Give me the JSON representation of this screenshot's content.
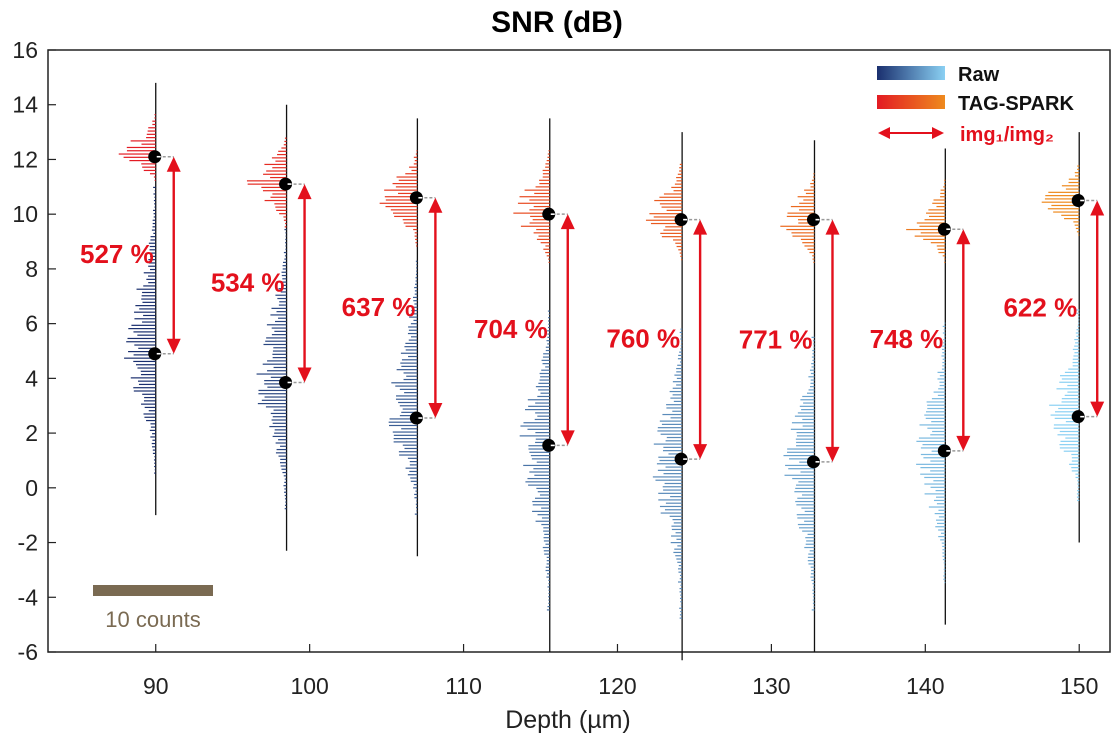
{
  "chart_data": {
    "type": "violin-histogram",
    "title": "SNR (dB)",
    "xlabel": "Depth (µm)",
    "ylabel": "",
    "xlim": [
      83,
      152
    ],
    "ylim": [
      -6,
      16
    ],
    "xticks": [
      90,
      100,
      110,
      120,
      130,
      140,
      150
    ],
    "yticks": [
      -6,
      -4,
      -2,
      0,
      2,
      4,
      6,
      8,
      10,
      12,
      14,
      16
    ],
    "depths": [
      90,
      98.5,
      107,
      115.6,
      124.2,
      132.8,
      141.3,
      150
    ],
    "raw_median": [
      4.9,
      3.85,
      2.55,
      1.55,
      1.05,
      0.95,
      1.35,
      2.6
    ],
    "tag_spark_median": [
      12.1,
      11.1,
      10.6,
      10.0,
      9.8,
      9.8,
      9.45,
      10.5
    ],
    "raw_range": [
      [
        0.5,
        11.0
      ],
      [
        -0.8,
        9.5
      ],
      [
        -1.0,
        8.3
      ],
      [
        -4.5,
        6.5
      ],
      [
        -4.8,
        5.8
      ],
      [
        -4.5,
        5.5
      ],
      [
        -3.5,
        6.0
      ],
      [
        -0.5,
        6.5
      ]
    ],
    "tag_spark_range": [
      [
        11.2,
        13.6
      ],
      [
        9.5,
        12.8
      ],
      [
        8.8,
        12.3
      ],
      [
        8.2,
        12.3
      ],
      [
        8.3,
        11.8
      ],
      [
        8.2,
        11.5
      ],
      [
        8.2,
        11.2
      ],
      [
        9.2,
        11.8
      ]
    ],
    "ratio_labels": [
      "527 %",
      "534 %",
      "637 %",
      "704 %",
      "760 %",
      "771 %",
      "748 %",
      "622 %"
    ],
    "series": [
      {
        "name": "Raw",
        "color_start": "#1a2f6e",
        "color_end": "#8ad0f3"
      },
      {
        "name": "TAG-SPARK",
        "color_start": "#e31b23",
        "color_end": "#ee8a1e"
      }
    ],
    "legend": {
      "position": "top-right",
      "ratio_label": "img₁/img₂"
    },
    "scale_bar": {
      "label": "10 counts",
      "value": 10
    },
    "grid": false
  }
}
